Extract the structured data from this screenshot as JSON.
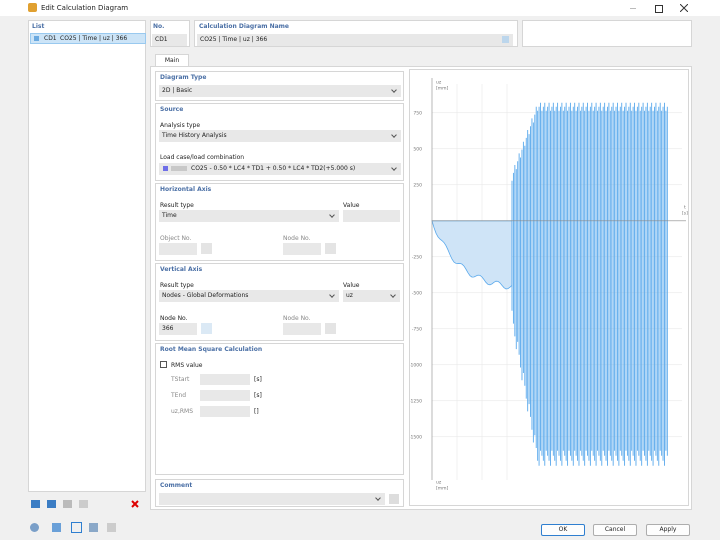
{
  "window": {
    "title": "Edit Calculation Diagram"
  },
  "list": {
    "header": "List",
    "items": [
      {
        "no": "CD1",
        "name": "CO25 | Time | uz | 366"
      }
    ]
  },
  "header": {
    "no_label": "No.",
    "no_value": "CD1",
    "name_label": "Calculation Diagram Name",
    "name_value": "CO25 | Time | uz | 366"
  },
  "tabs": [
    "Main"
  ],
  "diagram_type": {
    "title": "Diagram Type",
    "value": "2D | Basic"
  },
  "source": {
    "title": "Source",
    "analysis_label": "Analysis type",
    "analysis_value": "Time History Analysis",
    "load_label": "Load case/load combination",
    "load_value": "CO25 - 0.50 * LC4 * TD1 + 0.50 * LC4 * TD2(+5.000 s)"
  },
  "horizontal_axis": {
    "title": "Horizontal Axis",
    "result_label": "Result type",
    "result_value": "Time",
    "value_label": "Value",
    "object_label": "Object No.",
    "node_label": "Node No."
  },
  "vertical_axis": {
    "title": "Vertical Axis",
    "result_label": "Result type",
    "result_value": "Nodes - Global Deformations",
    "value_label": "Value",
    "value_value": "uz",
    "node_label": "Node No.",
    "node_value": "366",
    "node2_label": "Node No."
  },
  "rms": {
    "title": "Root Mean Square Calculation",
    "checkbox": "RMS value",
    "rows": [
      {
        "label": "TStart",
        "unit": "[s]"
      },
      {
        "label": "TEnd",
        "unit": "[s]"
      },
      {
        "label": "uz,RMS",
        "unit": "[]"
      }
    ]
  },
  "comment": {
    "title": "Comment"
  },
  "buttons": [
    "OK",
    "Cancel",
    "Apply"
  ],
  "chart_data": {
    "type": "line",
    "y_label": "uz",
    "y_unit": "[mm]",
    "x_label": "t",
    "x_unit": "[s]",
    "xlim": [
      0,
      10
    ],
    "xticks": [
      {
        "value": 1,
        "label": "1.000"
      },
      {
        "value": 2,
        "label": "2.000"
      },
      {
        "value": 3,
        "label": "3.000"
      }
    ],
    "ylim": [
      -1800,
      950
    ],
    "yticks": [
      750,
      500,
      250,
      -250,
      -500,
      -750,
      -1000,
      -1250,
      -1500
    ],
    "color": "#5aa9ec"
  }
}
